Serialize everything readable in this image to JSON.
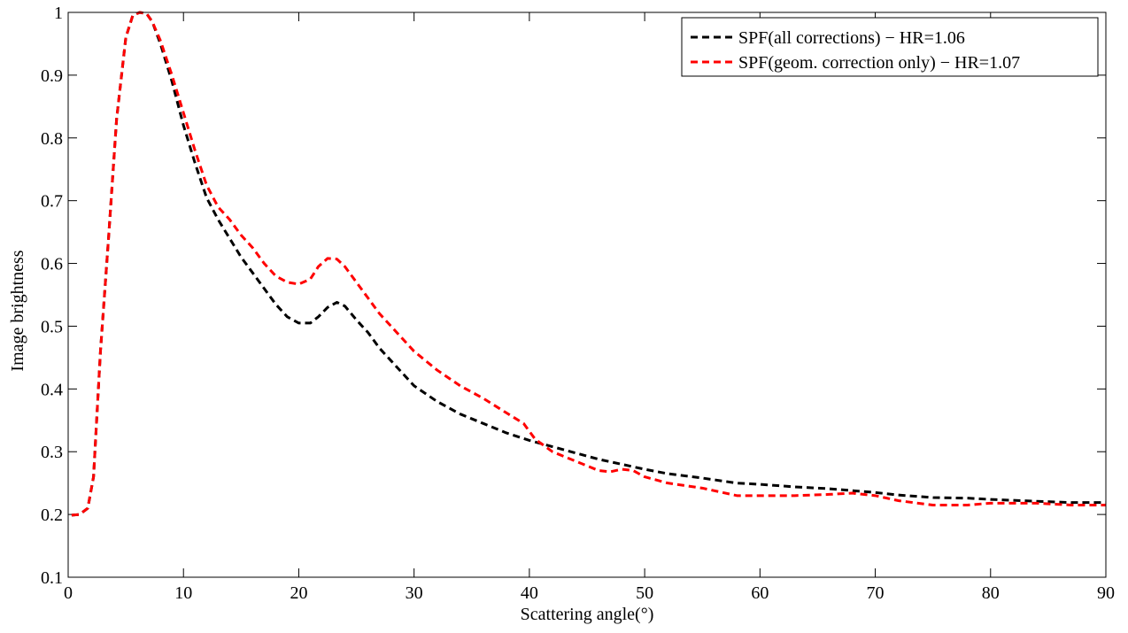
{
  "chart_data": {
    "type": "line",
    "xlabel": "Scattering angle(°)",
    "ylabel": "Image brightness",
    "xlim": [
      0,
      90
    ],
    "ylim": [
      0.1,
      1.0
    ],
    "xticks": [
      0,
      10,
      20,
      30,
      40,
      50,
      60,
      70,
      80,
      90
    ],
    "yticks": [
      0.1,
      0.2,
      0.3,
      0.4,
      0.5,
      0.6,
      0.7,
      0.8,
      0.9,
      1.0
    ],
    "ytick_labels": [
      "0.1",
      "0.2",
      "0.3",
      "0.4",
      "0.5",
      "0.6",
      "0.7",
      "0.8",
      "0.9",
      "1"
    ],
    "grid": false,
    "legend_position": "top-right",
    "series": [
      {
        "name": "SPF(all corrections) − HR=1.06",
        "color": "#000000",
        "style": "dashed",
        "x": [
          0.3,
          1,
          1.7,
          2.2,
          2.8,
          3.5,
          4.2,
          5,
          5.6,
          6.2,
          6.8,
          7.3,
          8,
          9,
          10,
          11,
          12,
          13,
          14,
          15,
          16,
          17,
          18,
          19,
          20,
          21,
          21.7,
          22.5,
          23.3,
          24,
          25,
          26,
          27,
          28,
          29,
          30,
          32,
          34,
          36,
          38,
          40,
          42,
          44,
          46,
          48,
          50,
          52,
          55,
          58,
          60,
          63,
          66,
          68,
          70,
          72,
          75,
          78,
          80,
          84,
          87,
          90
        ],
        "y": [
          0.199,
          0.2,
          0.21,
          0.26,
          0.46,
          0.64,
          0.83,
          0.96,
          0.995,
          1.0,
          0.998,
          0.985,
          0.95,
          0.89,
          0.82,
          0.76,
          0.705,
          0.67,
          0.64,
          0.61,
          0.585,
          0.56,
          0.535,
          0.515,
          0.505,
          0.505,
          0.515,
          0.53,
          0.538,
          0.532,
          0.51,
          0.49,
          0.465,
          0.445,
          0.425,
          0.405,
          0.38,
          0.36,
          0.345,
          0.33,
          0.318,
          0.308,
          0.298,
          0.288,
          0.28,
          0.272,
          0.265,
          0.258,
          0.25,
          0.248,
          0.244,
          0.241,
          0.238,
          0.235,
          0.231,
          0.227,
          0.226,
          0.224,
          0.221,
          0.219,
          0.219
        ]
      },
      {
        "name": "SPF(geom. correction only) − HR=1.07",
        "color": "#ff0000",
        "style": "dashed",
        "x": [
          0.3,
          1,
          1.7,
          2.2,
          2.8,
          3.5,
          4.2,
          5,
          5.6,
          6.2,
          6.8,
          7.3,
          8,
          9,
          10,
          11,
          12,
          13,
          14,
          15,
          16,
          17,
          18,
          19,
          20,
          21,
          21.7,
          22.5,
          23.3,
          24,
          25,
          26,
          27,
          28,
          29,
          30,
          32,
          34,
          36,
          38,
          39.5,
          40.5,
          42,
          44,
          46,
          47,
          48,
          49,
          50,
          52,
          55,
          58,
          60,
          63,
          66,
          68,
          70,
          72,
          75,
          78,
          80,
          84,
          87,
          90
        ],
        "y": [
          0.199,
          0.2,
          0.21,
          0.26,
          0.46,
          0.64,
          0.83,
          0.96,
          0.995,
          1.0,
          0.998,
          0.985,
          0.955,
          0.9,
          0.84,
          0.78,
          0.725,
          0.69,
          0.67,
          0.645,
          0.625,
          0.6,
          0.58,
          0.57,
          0.567,
          0.575,
          0.595,
          0.608,
          0.607,
          0.595,
          0.57,
          0.545,
          0.52,
          0.5,
          0.48,
          0.46,
          0.43,
          0.405,
          0.385,
          0.362,
          0.345,
          0.32,
          0.3,
          0.285,
          0.27,
          0.268,
          0.272,
          0.27,
          0.26,
          0.25,
          0.242,
          0.23,
          0.23,
          0.23,
          0.232,
          0.234,
          0.23,
          0.222,
          0.215,
          0.215,
          0.218,
          0.218,
          0.215,
          0.215
        ]
      }
    ]
  }
}
